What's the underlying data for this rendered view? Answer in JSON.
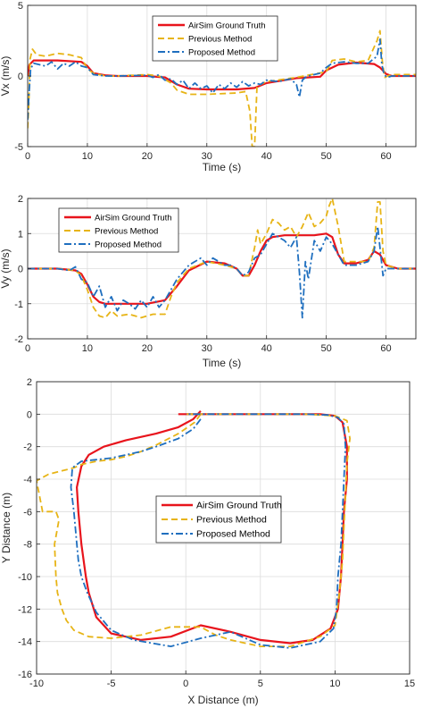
{
  "colors": {
    "ground_truth": "#e8141c",
    "previous": "#e7b416",
    "proposed": "#1f6fbf",
    "grid": "#dcdcdc",
    "axis": "#262626"
  },
  "chart_data": [
    {
      "type": "line",
      "xlabel": "Time (s)",
      "ylabel": "Vx (m/s)",
      "xlim": [
        0,
        65
      ],
      "ylim": [
        -5,
        5
      ],
      "xticks": [
        0,
        10,
        20,
        30,
        40,
        50,
        60
      ],
      "yticks": [
        -5,
        0,
        5
      ],
      "grid": true,
      "legend": "top-center",
      "series": [
        {
          "name": "AirSim Ground Truth",
          "style": "solid",
          "x": [
            0,
            0.3,
            1,
            2,
            5,
            9,
            10,
            11,
            13,
            15,
            20,
            23,
            25,
            27,
            30,
            35,
            38,
            40,
            45,
            49,
            50,
            52,
            55,
            58,
            59,
            60,
            61,
            62,
            65
          ],
          "y": [
            0,
            0.8,
            1.1,
            1.1,
            1.1,
            1.0,
            0.7,
            0.2,
            0.05,
            0,
            0,
            -0.1,
            -0.6,
            -0.9,
            -0.95,
            -0.95,
            -0.85,
            -0.5,
            -0.15,
            -0.05,
            0.4,
            0.8,
            0.95,
            0.85,
            0.6,
            0.15,
            0,
            0,
            0
          ]
        },
        {
          "name": "Previous Method",
          "style": "dashed",
          "x": [
            0,
            0.2,
            0.4,
            0.8,
            1.5,
            3,
            5,
            7,
            9,
            10,
            11,
            13,
            15,
            20,
            22,
            24,
            25,
            27,
            30,
            35,
            36.5,
            37.2,
            37.6,
            38,
            38.4,
            39,
            40,
            45,
            50,
            51,
            53,
            55,
            57,
            58.5,
            59,
            59.4,
            59.8,
            60.3,
            61,
            65
          ],
          "y": [
            -3.7,
            -2,
            1.2,
            1.9,
            1.5,
            1.4,
            1.6,
            1.5,
            1.3,
            0.5,
            0.2,
            0,
            0,
            0.1,
            0,
            -0.5,
            -1.0,
            -1.3,
            -1.3,
            -1.2,
            -1.1,
            -2.5,
            -5,
            -5,
            -0.7,
            -0.6,
            -0.4,
            -0.1,
            0.3,
            1.1,
            1.2,
            1.0,
            1.1,
            2.5,
            3.2,
            1.0,
            -0.1,
            0,
            0.1,
            0.1
          ]
        },
        {
          "name": "Proposed Method",
          "style": "dashdot",
          "x": [
            0,
            0.2,
            0.5,
            1,
            2,
            3,
            4,
            5,
            6,
            7,
            8,
            9,
            10,
            11,
            13,
            15,
            20,
            21,
            22,
            23,
            24,
            25,
            26,
            27,
            28,
            29,
            30,
            31,
            32,
            33,
            34,
            35,
            36,
            37,
            38,
            39,
            40,
            42,
            44,
            45,
            45.5,
            46,
            46.5,
            47,
            49,
            50,
            51,
            53,
            55,
            57,
            58.5,
            59,
            59.3,
            59.7,
            60.2,
            61,
            65
          ],
          "y": [
            -3.1,
            -1.5,
            0.5,
            0.9,
            0.8,
            0.7,
            1.0,
            0.5,
            0.9,
            0.7,
            1.0,
            0.7,
            0.6,
            0.1,
            0,
            0,
            0.05,
            -0.1,
            0.1,
            -0.3,
            -0.2,
            -0.6,
            -0.3,
            -0.9,
            -0.5,
            -0.9,
            -0.7,
            -1.2,
            -0.6,
            -0.9,
            -0.5,
            -0.8,
            -0.4,
            -0.7,
            -0.5,
            -0.6,
            -0.3,
            -0.4,
            -0.2,
            -0.6,
            -1.5,
            -0.3,
            -0.1,
            0,
            0.2,
            0.6,
            0.9,
            1.0,
            0.9,
            0.9,
            1.4,
            2.6,
            0.8,
            0.1,
            -0.1,
            0,
            0
          ]
        }
      ]
    },
    {
      "type": "line",
      "xlabel": "Time (s)",
      "ylabel": "Vy (m/s)",
      "xlim": [
        0,
        65
      ],
      "ylim": [
        -2,
        2
      ],
      "xticks": [
        0,
        10,
        20,
        30,
        40,
        50,
        60
      ],
      "yticks": [
        -2,
        -1,
        0,
        1,
        2
      ],
      "grid": true,
      "legend": "top-left",
      "series": [
        {
          "name": "AirSim Ground Truth",
          "style": "solid",
          "x": [
            0,
            5,
            8,
            9,
            10,
            11,
            12,
            13,
            15,
            20,
            23,
            25,
            27,
            30,
            33,
            35,
            36,
            37,
            38,
            39,
            40,
            41,
            43,
            45,
            48,
            50,
            51,
            52,
            53,
            55,
            57,
            58,
            59,
            60,
            62,
            65
          ],
          "y": [
            0,
            0,
            -0.05,
            -0.15,
            -0.45,
            -0.8,
            -0.95,
            -1.0,
            -1.0,
            -1.0,
            -0.9,
            -0.5,
            -0.05,
            0.2,
            0.15,
            0.0,
            -0.2,
            -0.2,
            0.1,
            0.5,
            0.8,
            0.9,
            0.95,
            0.95,
            0.95,
            1.0,
            0.9,
            0.4,
            0.15,
            0.15,
            0.25,
            0.5,
            0.4,
            0.1,
            0,
            0
          ]
        },
        {
          "name": "Previous Method",
          "style": "dashed",
          "x": [
            0,
            5,
            8,
            9,
            10,
            11,
            12,
            13,
            14,
            15,
            17,
            19,
            21,
            23,
            24,
            25,
            27,
            30,
            33,
            35,
            36,
            37,
            38,
            38.5,
            39,
            40,
            41,
            42,
            43,
            44,
            45,
            46,
            47,
            48,
            49,
            50,
            50.5,
            51,
            52,
            53,
            55,
            57,
            58,
            58.6,
            59,
            59.5,
            60,
            62,
            65
          ],
          "y": [
            0,
            0,
            -0.05,
            -0.2,
            -0.6,
            -1.1,
            -1.35,
            -1.4,
            -1.2,
            -1.35,
            -1.3,
            -1.4,
            -1.3,
            -1.3,
            -0.8,
            -0.4,
            0,
            0.2,
            0.1,
            0,
            -0.2,
            -0.2,
            0.6,
            1.1,
            0.7,
            1.0,
            1.4,
            1.3,
            1.1,
            1.2,
            0.9,
            1.2,
            1.6,
            1.2,
            1.3,
            1.5,
            1.8,
            2.0,
            1.2,
            0.2,
            0.2,
            0.2,
            0.6,
            1.9,
            1.9,
            0.5,
            0.1,
            0,
            0
          ]
        },
        {
          "name": "Proposed Method",
          "style": "dashdot",
          "x": [
            0,
            5,
            7,
            8,
            9,
            10,
            11,
            12,
            13,
            14,
            15,
            16,
            17,
            18,
            19,
            20,
            21,
            22,
            23,
            24,
            25,
            26,
            27,
            28,
            29,
            30,
            31,
            32,
            33,
            34,
            35,
            36,
            37,
            38,
            39,
            40,
            41,
            42,
            43,
            44,
            45,
            45.5,
            46,
            46.5,
            47,
            48,
            49,
            50,
            51,
            52,
            53,
            55,
            57,
            58,
            58.6,
            59,
            59.5,
            60,
            62,
            65
          ],
          "y": [
            0,
            0,
            -0.05,
            0.05,
            -0.3,
            -0.4,
            -0.8,
            -0.5,
            -1.1,
            -0.8,
            -1.2,
            -0.9,
            -1.0,
            -1.15,
            -0.9,
            -1.1,
            -0.8,
            -1.1,
            -0.9,
            -0.6,
            -0.3,
            -0.1,
            0.1,
            0.2,
            0.3,
            0.1,
            0.3,
            0.2,
            0.1,
            0.1,
            0.0,
            -0.2,
            -0.1,
            0.3,
            0.4,
            0.7,
            1.0,
            0.9,
            0.8,
            0.6,
            0.9,
            -0.1,
            -1.4,
            0.2,
            -0.3,
            0.8,
            0.5,
            0.9,
            0.7,
            0.4,
            0.1,
            0.1,
            0.2,
            0.5,
            1.2,
            0.6,
            -0.2,
            0,
            0,
            0
          ]
        }
      ]
    },
    {
      "type": "line",
      "xlabel": "X Distance (m)",
      "ylabel": "Y Distance (m)",
      "xlim": [
        -10,
        15
      ],
      "ylim": [
        -16,
        2
      ],
      "xticks": [
        -10,
        -5,
        0,
        5,
        10,
        15
      ],
      "yticks": [
        -16,
        -14,
        -12,
        -10,
        -8,
        -6,
        -4,
        -2,
        0,
        2
      ],
      "grid": true,
      "legend": "center",
      "series": [
        {
          "name": "AirSim Ground Truth",
          "style": "solid",
          "x": [
            1,
            0.5,
            -0.5,
            -2,
            -4,
            -5.5,
            -6.5,
            -7,
            -7.3,
            -7.2,
            -7,
            -6.7,
            -6.5,
            -6,
            -5,
            -3,
            -1,
            1,
            3,
            5,
            7,
            8.5,
            9.7,
            10.2,
            10.4,
            10.5,
            10.6,
            10.8,
            10.8,
            10.5,
            10.0,
            9.0,
            6.0,
            2.0,
            -0.5
          ],
          "y": [
            0.2,
            -0.3,
            -0.8,
            -1.2,
            -1.6,
            -2.0,
            -2.5,
            -3.2,
            -4.5,
            -6,
            -8,
            -10,
            -11,
            -12.5,
            -13.5,
            -13.9,
            -13.7,
            -13.0,
            -13.4,
            -13.9,
            -14.1,
            -13.9,
            -13.2,
            -12.0,
            -10.0,
            -8.0,
            -6.0,
            -4.0,
            -2.0,
            -0.5,
            -0.1,
            0.0,
            0.0,
            0.0,
            0.0
          ]
        },
        {
          "name": "Previous Method",
          "style": "dashed",
          "x": [
            1,
            0.6,
            -0.5,
            -2,
            -3,
            -4,
            -5,
            -6,
            -7,
            -7.5,
            -9.2,
            -10,
            -9.6,
            -8.7,
            -8.5,
            -8.8,
            -8.7,
            -8.6,
            -8.3,
            -8,
            -7.5,
            -6.5,
            -5,
            -3,
            -1,
            1,
            2,
            3,
            5,
            7,
            9,
            10,
            10.3,
            10.5,
            10.6,
            10.7,
            10.8,
            11.0,
            10.8,
            10.0,
            8.0,
            5.0,
            2.0,
            0.0
          ],
          "y": [
            0.0,
            -0.5,
            -1.2,
            -1.9,
            -2.3,
            -2.6,
            -2.8,
            -2.9,
            -3.1,
            -3.3,
            -3.7,
            -4.1,
            -6.0,
            -6.0,
            -6.5,
            -8.0,
            -10.0,
            -11.0,
            -12.0,
            -12.7,
            -13.3,
            -13.7,
            -13.8,
            -13.6,
            -13.1,
            -13.1,
            -13.6,
            -13.9,
            -14.3,
            -14.3,
            -13.7,
            -13.0,
            -11.0,
            -9.0,
            -7.0,
            -5.0,
            -3.0,
            -1.5,
            -0.4,
            -0.1,
            0.0,
            0.0,
            0.0,
            0.0
          ]
        },
        {
          "name": "Proposed Method",
          "style": "dashdot",
          "x": [
            1,
            0.5,
            -0.5,
            -2,
            -3,
            -4,
            -5,
            -6,
            -7,
            -7.6,
            -7.7,
            -7.5,
            -7.3,
            -7.2,
            -7.0,
            -6.6,
            -6.0,
            -5.0,
            -3.5,
            -1.0,
            1.0,
            3.0,
            5.0,
            7.0,
            9.0,
            9.9,
            10.1,
            10.2,
            10.4,
            10.5,
            10.6,
            10.7,
            10.6,
            10.2,
            9.5,
            8.0,
            5.0,
            2.0,
            0.0
          ],
          "y": [
            -0.3,
            -0.9,
            -1.5,
            -2.0,
            -2.3,
            -2.5,
            -2.7,
            -2.8,
            -2.9,
            -3.3,
            -4.5,
            -6.0,
            -8.0,
            -9.0,
            -10.0,
            -11.0,
            -12.2,
            -13.3,
            -13.9,
            -14.3,
            -13.8,
            -13.4,
            -14.2,
            -14.4,
            -14.0,
            -13.2,
            -12.0,
            -10.0,
            -8.0,
            -6.0,
            -4.0,
            -2.0,
            -0.6,
            -0.2,
            -0.05,
            0.0,
            0.0,
            0.0,
            0.0
          ]
        }
      ]
    }
  ]
}
